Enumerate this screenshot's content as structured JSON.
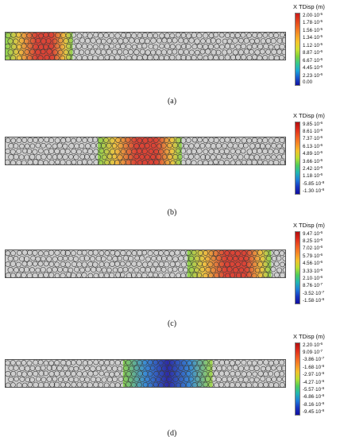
{
  "panels": [
    {
      "id": "a",
      "caption": "(a)",
      "legend_title": "X TDisp (m)",
      "ticks": [
        [
          "2.00·10",
          "-5"
        ],
        [
          "1.78·10",
          "-5"
        ],
        [
          "1.56·10",
          "-5"
        ],
        [
          "1.34·10",
          "-5"
        ],
        [
          "1.12·10",
          "-5"
        ],
        [
          "8.87·10",
          "-6"
        ],
        [
          "6.67·10",
          "-6"
        ],
        [
          "4.45·10",
          "-6"
        ],
        [
          "2.23·10",
          "-6"
        ],
        [
          "0.00",
          ""
        ]
      ],
      "scale_colors": [
        "#cc1a1a",
        "#e0401c",
        "#f06a22",
        "#f59a26",
        "#f6c52a",
        "#cfe030",
        "#7fd23a",
        "#34c98e",
        "#1ba6d6",
        "#1a55cc",
        "#1010a0"
      ],
      "highlight": {
        "center": 0.12,
        "width": 0.24,
        "intensity": "high",
        "shape": "left-block"
      }
    },
    {
      "id": "b",
      "caption": "(b)",
      "legend_title": "X TDisp (m)",
      "ticks": [
        [
          "9.85·10",
          "-6"
        ],
        [
          "8.61·10",
          "-6"
        ],
        [
          "7.37·10",
          "-6"
        ],
        [
          "6.13·10",
          "-6"
        ],
        [
          "4.89·10",
          "-6"
        ],
        [
          "3.66·10",
          "-6"
        ],
        [
          "2.42·10",
          "-6"
        ],
        [
          "1.18·10",
          "-6"
        ],
        [
          "-5.85·10",
          "-8"
        ],
        [
          "-1.30·10",
          "-6"
        ]
      ],
      "scale_colors": [
        "#b30f0f",
        "#dd2b1b",
        "#f05a22",
        "#f68a26",
        "#f4c02a",
        "#b8de30",
        "#4fcc5a",
        "#22b7b0",
        "#1f7fd8",
        "#1836c0",
        "#100ea0"
      ],
      "highlight": {
        "center": 0.48,
        "width": 0.3,
        "intensity": "high",
        "shape": "band"
      }
    },
    {
      "id": "c",
      "caption": "(c)",
      "legend_title": "X TDisp (m)",
      "ticks": [
        [
          "9.47·10",
          "-6"
        ],
        [
          "8.25·10",
          "-6"
        ],
        [
          "7.02·10",
          "-6"
        ],
        [
          "5.79·10",
          "-6"
        ],
        [
          "4.56·10",
          "-6"
        ],
        [
          "3.33·10",
          "-6"
        ],
        [
          "2.10·10",
          "-6"
        ],
        [
          "8.76·10",
          "-7"
        ],
        [
          "-3.52·10",
          "-7"
        ],
        [
          "-1.58·10",
          "-6"
        ]
      ],
      "scale_colors": [
        "#b30f0f",
        "#dd2b1b",
        "#f05a22",
        "#f68a26",
        "#f4c02a",
        "#b8de30",
        "#4fcc5a",
        "#22b7b0",
        "#1f7fd8",
        "#1836c0",
        "#100ea0"
      ],
      "highlight": {
        "center": 0.8,
        "width": 0.3,
        "intensity": "high",
        "shape": "band"
      }
    },
    {
      "id": "d",
      "caption": "(d)",
      "legend_title": "X TDisp (m)",
      "ticks": [
        [
          "2.20·10",
          "-6"
        ],
        [
          "9.09·10",
          "-7"
        ],
        [
          "-3.86·10",
          "-7"
        ],
        [
          "-1.68·10",
          "-6"
        ],
        [
          "-2.97·10",
          "-6"
        ],
        [
          "-4.27·10",
          "-6"
        ],
        [
          "-5.57·10",
          "-6"
        ],
        [
          "-6.86·10",
          "-6"
        ],
        [
          "-8.16·10",
          "-6"
        ],
        [
          "-9.45·10",
          "-6"
        ]
      ],
      "scale_colors": [
        "#b30f0f",
        "#dd2b1b",
        "#f05a22",
        "#f68a26",
        "#f4c02a",
        "#b8de30",
        "#4fcc5a",
        "#22b7b0",
        "#1f7fd8",
        "#1836c0",
        "#100ea0"
      ],
      "highlight": {
        "center": 0.58,
        "width": 0.32,
        "intensity": "low",
        "shape": "band"
      }
    }
  ]
}
